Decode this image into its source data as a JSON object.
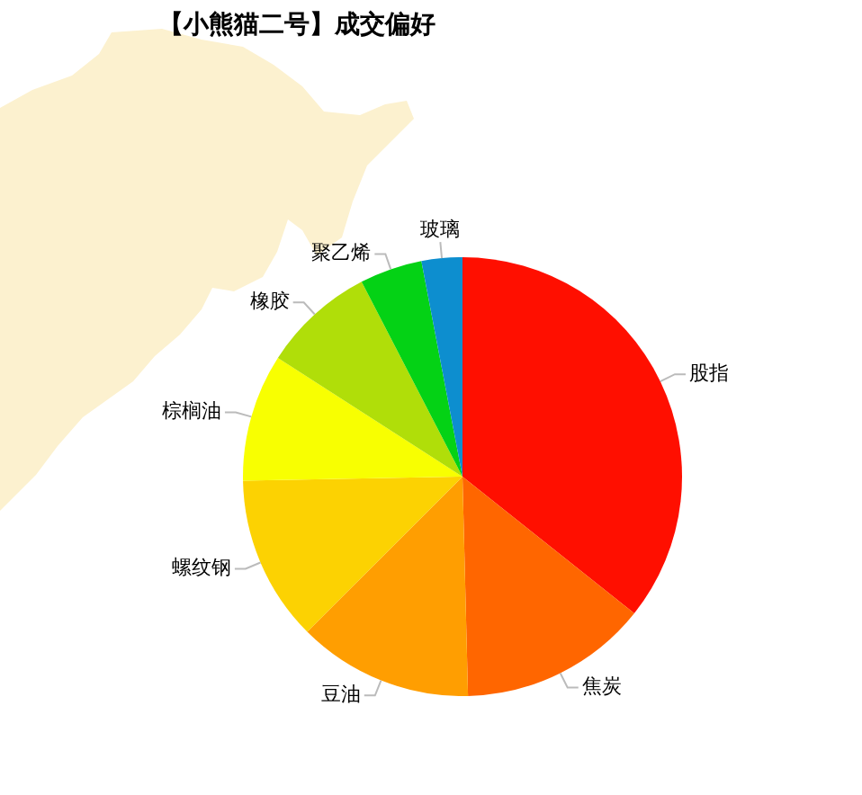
{
  "chart_data": {
    "type": "pie",
    "title": "【小熊猫二号】成交偏好",
    "categories": [
      "股指",
      "焦炭",
      "豆油",
      "螺纹钢",
      "棕榈油",
      "橡胶",
      "聚乙烯",
      "玻璃"
    ],
    "values": [
      35.7,
      13.9,
      12.9,
      12.2,
      9.4,
      8.3,
      4.6,
      3.0
    ],
    "colors": [
      "#ff0f00",
      "#ff6600",
      "#ff9e01",
      "#fcd202",
      "#f8ff01",
      "#b0de09",
      "#04d215",
      "#0d8ecf"
    ]
  }
}
